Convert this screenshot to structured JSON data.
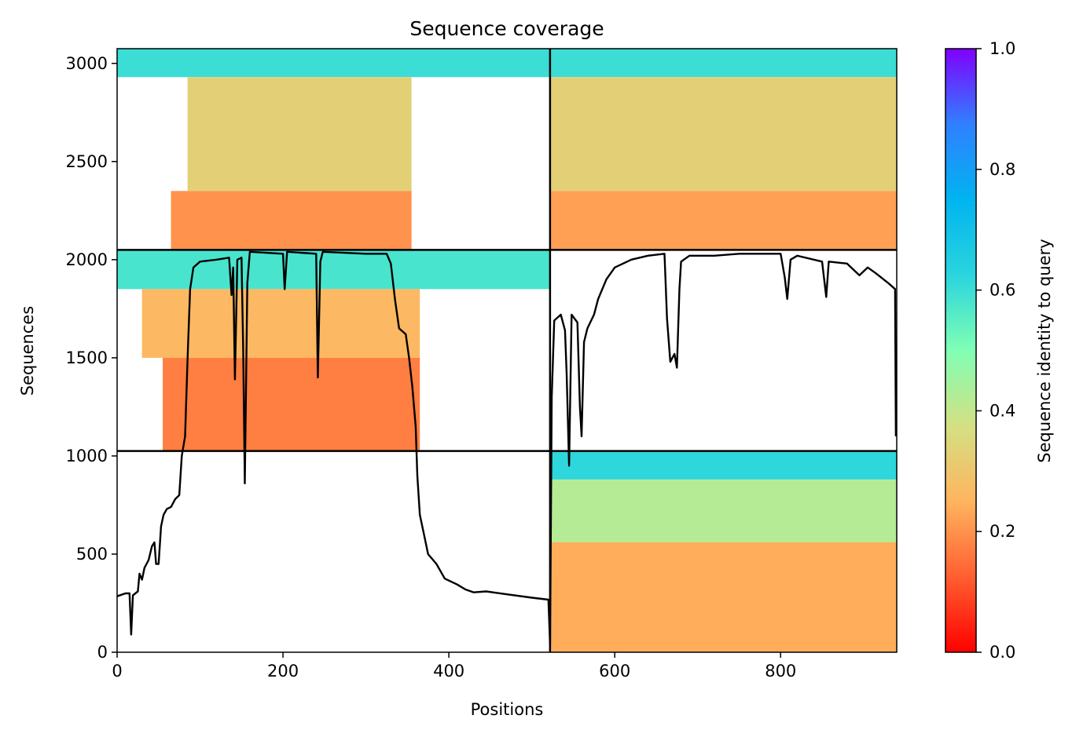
{
  "chart_data": {
    "type": "heatmap",
    "title": "Sequence coverage",
    "xlabel": "Positions",
    "ylabel": "Sequences",
    "xlim": [
      0,
      940
    ],
    "ylim": [
      0,
      3075
    ],
    "x_ticks": [
      0,
      200,
      400,
      600,
      800
    ],
    "y_ticks": [
      0,
      500,
      1000,
      1500,
      2000,
      2500,
      3000
    ],
    "colorbar": {
      "label": "Sequence identity to query",
      "colormap": "rainbow_r",
      "range": [
        0.0,
        1.0
      ],
      "ticks": [
        "0.0",
        "0.2",
        "0.4",
        "0.6",
        "0.8",
        "1.0"
      ]
    },
    "chain_boundary_x": 522,
    "block_boundaries_y": [
      1025,
      2050
    ],
    "msa_blocks": [
      {
        "x": [
          0,
          522
        ],
        "y": [
          1025,
          2050
        ],
        "bands": [
          {
            "y": [
              1850,
              2050
            ],
            "identity": 0.58,
            "x": [
              0,
              522
            ]
          },
          {
            "y": [
              1500,
              1850
            ],
            "identity": 0.26,
            "x": [
              30,
              365
            ]
          },
          {
            "y": [
              1025,
              1500
            ],
            "identity": 0.17,
            "x": [
              55,
              365
            ]
          }
        ]
      },
      {
        "x": [
          0,
          522
        ],
        "y": [
          2050,
          3075
        ],
        "bands": [
          {
            "y": [
              2930,
              3075
            ],
            "identity": 0.6,
            "x": [
              0,
              522
            ]
          },
          {
            "y": [
              2350,
              2930
            ],
            "identity": 0.33,
            "x": [
              85,
              355
            ]
          },
          {
            "y": [
              2050,
              2350
            ],
            "identity": 0.2,
            "x": [
              65,
              355
            ]
          }
        ]
      },
      {
        "x": [
          522,
          940
        ],
        "y": [
          2050,
          3075
        ],
        "bands": [
          {
            "y": [
              2930,
              3075
            ],
            "identity": 0.6,
            "x": [
              522,
              940
            ]
          },
          {
            "y": [
              2350,
              2930
            ],
            "identity": 0.33,
            "x": [
              522,
              940
            ]
          },
          {
            "y": [
              2050,
              2350
            ],
            "identity": 0.22,
            "x": [
              522,
              940
            ]
          }
        ]
      },
      {
        "x": [
          522,
          940
        ],
        "y": [
          0,
          1025
        ],
        "bands": [
          {
            "y": [
              880,
              1025
            ],
            "identity": 0.62,
            "x": [
              522,
              940
            ]
          },
          {
            "y": [
              560,
              880
            ],
            "identity": 0.42,
            "x": [
              522,
              940
            ]
          },
          {
            "y": [
              0,
              560
            ],
            "identity": 0.24,
            "x": [
              522,
              940
            ]
          }
        ]
      }
    ],
    "coverage_line": [
      [
        0,
        285
      ],
      [
        10,
        300
      ],
      [
        15,
        300
      ],
      [
        17,
        90
      ],
      [
        19,
        290
      ],
      [
        25,
        310
      ],
      [
        27,
        400
      ],
      [
        30,
        370
      ],
      [
        33,
        430
      ],
      [
        38,
        470
      ],
      [
        42,
        540
      ],
      [
        45,
        560
      ],
      [
        47,
        450
      ],
      [
        50,
        450
      ],
      [
        53,
        640
      ],
      [
        56,
        700
      ],
      [
        60,
        730
      ],
      [
        65,
        740
      ],
      [
        70,
        780
      ],
      [
        75,
        800
      ],
      [
        78,
        1000
      ],
      [
        82,
        1100
      ],
      [
        85,
        1500
      ],
      [
        88,
        1850
      ],
      [
        92,
        1960
      ],
      [
        100,
        1990
      ],
      [
        120,
        2000
      ],
      [
        135,
        2010
      ],
      [
        138,
        1820
      ],
      [
        140,
        1960
      ],
      [
        142,
        1390
      ],
      [
        145,
        2000
      ],
      [
        150,
        2010
      ],
      [
        152,
        1550
      ],
      [
        154,
        860
      ],
      [
        157,
        1880
      ],
      [
        160,
        2040
      ],
      [
        200,
        2030
      ],
      [
        202,
        1850
      ],
      [
        205,
        2040
      ],
      [
        240,
        2030
      ],
      [
        242,
        1400
      ],
      [
        245,
        1990
      ],
      [
        248,
        2040
      ],
      [
        300,
        2030
      ],
      [
        325,
        2030
      ],
      [
        330,
        1980
      ],
      [
        335,
        1800
      ],
      [
        340,
        1650
      ],
      [
        348,
        1620
      ],
      [
        352,
        1500
      ],
      [
        356,
        1350
      ],
      [
        360,
        1150
      ],
      [
        362,
        900
      ],
      [
        365,
        700
      ],
      [
        370,
        600
      ],
      [
        375,
        500
      ],
      [
        385,
        450
      ],
      [
        395,
        375
      ],
      [
        410,
        345
      ],
      [
        420,
        320
      ],
      [
        430,
        305
      ],
      [
        445,
        310
      ],
      [
        470,
        295
      ],
      [
        500,
        278
      ],
      [
        520,
        268
      ],
      [
        522,
        40
      ],
      [
        524,
        1300
      ],
      [
        527,
        1690
      ],
      [
        535,
        1720
      ],
      [
        540,
        1640
      ],
      [
        542,
        1420
      ],
      [
        545,
        950
      ],
      [
        548,
        1720
      ],
      [
        555,
        1680
      ],
      [
        558,
        1250
      ],
      [
        560,
        1100
      ],
      [
        563,
        1580
      ],
      [
        567,
        1650
      ],
      [
        575,
        1720
      ],
      [
        580,
        1800
      ],
      [
        590,
        1900
      ],
      [
        600,
        1960
      ],
      [
        620,
        2000
      ],
      [
        640,
        2020
      ],
      [
        660,
        2030
      ],
      [
        663,
        1700
      ],
      [
        667,
        1480
      ],
      [
        672,
        1520
      ],
      [
        675,
        1450
      ],
      [
        678,
        1850
      ],
      [
        680,
        1990
      ],
      [
        690,
        2020
      ],
      [
        720,
        2020
      ],
      [
        750,
        2030
      ],
      [
        800,
        2030
      ],
      [
        805,
        1910
      ],
      [
        808,
        1800
      ],
      [
        812,
        2000
      ],
      [
        820,
        2020
      ],
      [
        850,
        1990
      ],
      [
        855,
        1810
      ],
      [
        858,
        1990
      ],
      [
        880,
        1980
      ],
      [
        895,
        1920
      ],
      [
        905,
        1960
      ],
      [
        915,
        1930
      ],
      [
        930,
        1880
      ],
      [
        938,
        1850
      ],
      [
        939,
        1100
      ]
    ]
  }
}
